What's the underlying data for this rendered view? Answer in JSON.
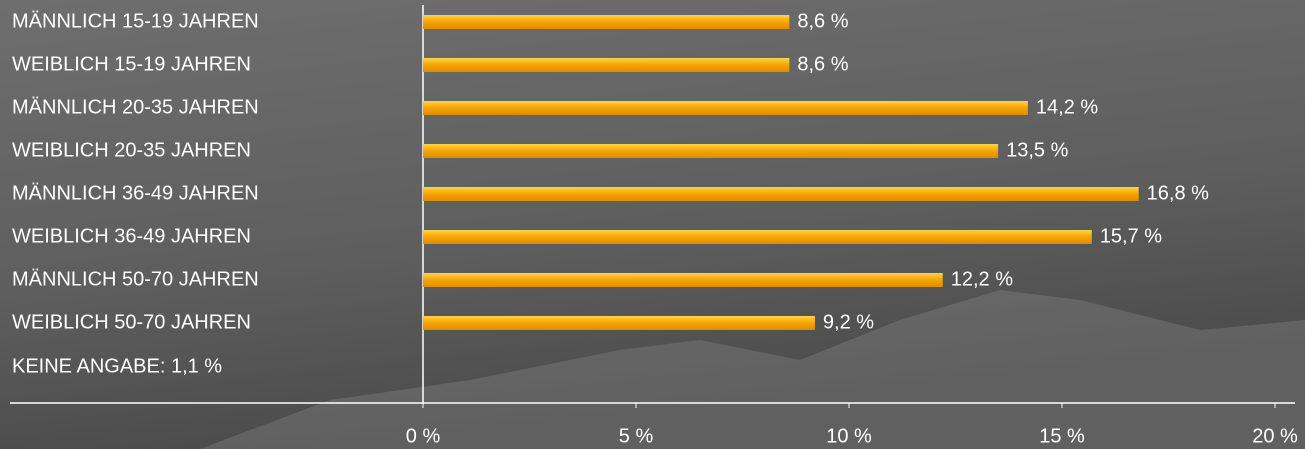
{
  "chart_data": {
    "type": "hbar",
    "categories": [
      "MÄNNLICH 15-19 JAHREN",
      "WEIBLICH 15-19 JAHREN",
      "MÄNNLICH 20-35 JAHREN",
      "WEIBLICH 20-35 JAHREN",
      "MÄNNLICH 36-49 JAHREN",
      "WEIBLICH 36-49 JAHREN",
      "MÄNNLICH 50-70 JAHREN",
      "WEIBLICH 50-70 JAHREN"
    ],
    "values": [
      8.6,
      8.6,
      14.2,
      13.5,
      16.8,
      15.7,
      12.2,
      9.2
    ],
    "value_labels": [
      "8,6 %",
      "8,6 %",
      "14,2 %",
      "13,5 %",
      "16,8 %",
      "15,7 %",
      "12,2 %",
      "9,2 %"
    ],
    "color": "#f5a400",
    "annotation": "KEINE ANGABE: 1,1 %",
    "xlim": [
      0,
      20
    ],
    "xticks": [
      {
        "value": 0,
        "label": "0 %"
      },
      {
        "value": 5,
        "label": "5 %"
      },
      {
        "value": 10,
        "label": "10 %"
      },
      {
        "value": 15,
        "label": "15 %"
      },
      {
        "value": 20,
        "label": "20 %"
      }
    ],
    "grid": false
  }
}
